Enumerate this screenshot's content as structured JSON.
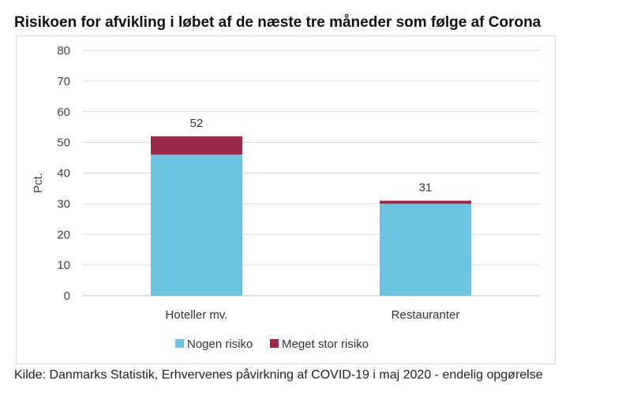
{
  "title": "Risikoen for afvikling i løbet af de næste tre måneder som følge af Corona",
  "source": "Kilde: Danmarks Statistik, Erhvervenes påvirkning af COVID-19 i maj 2020 - endelig opgørelse",
  "chart_data": {
    "type": "bar",
    "stacked": true,
    "categories": [
      "Hoteller mv.",
      "Restauranter"
    ],
    "series": [
      {
        "name": "Nogen risiko",
        "values": [
          46,
          30
        ],
        "color": "#6cc5e0"
      },
      {
        "name": "Meget stor risiko",
        "values": [
          6,
          1
        ],
        "color": "#9b2a4a"
      }
    ],
    "totals": [
      52,
      31
    ],
    "ylabel": "Pct.",
    "ylim": [
      0,
      80
    ],
    "yticks": [
      0,
      10,
      20,
      30,
      40,
      50,
      60,
      70,
      80
    ],
    "grid": true,
    "legend": "bottom"
  }
}
